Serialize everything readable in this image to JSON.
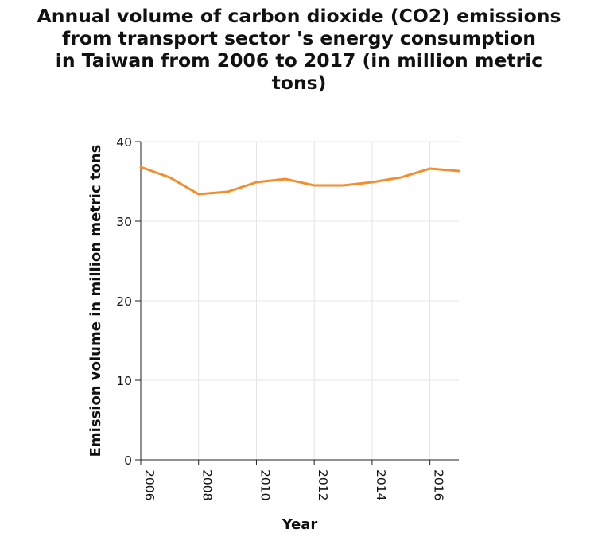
{
  "chart_data": {
    "type": "line",
    "title_lines": [
      "Annual volume of carbon dioxide (CO2) emissions",
      "from transport sector 's energy consumption",
      "in Taiwan from 2006 to 2017 (in million metric",
      "tons)"
    ],
    "xlabel": "Year",
    "ylabel": "Emission volume in million metric tons",
    "x": [
      2006,
      2007,
      2008,
      2009,
      2010,
      2011,
      2012,
      2013,
      2014,
      2015,
      2016,
      2017
    ],
    "series": [
      {
        "values": [
          36.8,
          35.5,
          33.4,
          33.7,
          34.9,
          35.3,
          34.5,
          34.5,
          34.9,
          35.5,
          36.6,
          36.3
        ],
        "color": "#f28e2b"
      }
    ],
    "xlim": [
      2006,
      2017
    ],
    "ylim": [
      0,
      40
    ],
    "xticks": [
      "2006",
      "2008",
      "2010",
      "2012",
      "2014",
      "2016"
    ],
    "yticks": [
      "0",
      "10",
      "20",
      "30",
      "40"
    ],
    "grid": true,
    "legend": "none"
  }
}
